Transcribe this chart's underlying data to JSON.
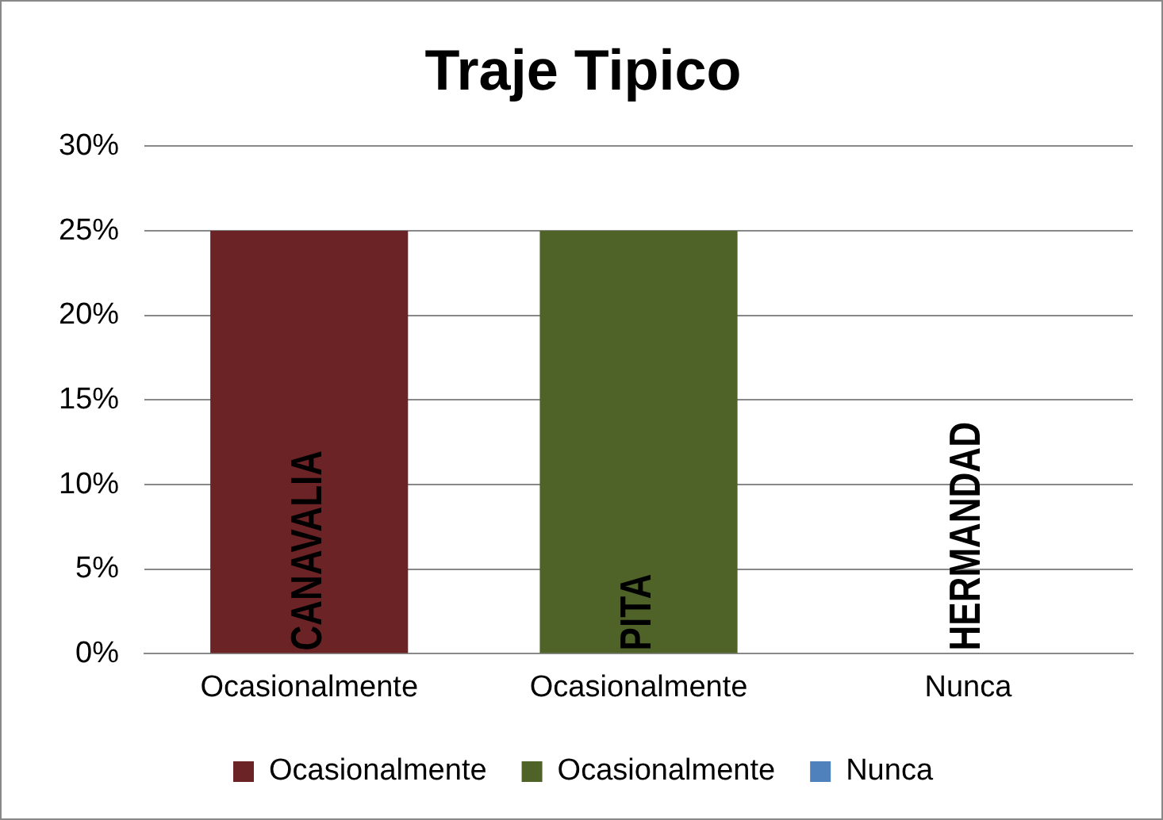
{
  "chart_data": {
    "type": "bar",
    "title": "Traje Tipico",
    "categories": [
      "Ocasionalmente",
      "Ocasionalmente",
      "Nunca"
    ],
    "series": [
      {
        "name": "Ocasionalmente",
        "color": "#6b2326",
        "values": [
          25,
          null,
          null
        ]
      },
      {
        "name": "Ocasionalmente",
        "color": "#4f6228",
        "values": [
          null,
          25,
          null
        ]
      },
      {
        "name": "Nunca",
        "color": "#4f81bd",
        "values": [
          null,
          null,
          0
        ]
      }
    ],
    "ylim": [
      0,
      30
    ],
    "yticks": [
      {
        "value": 0,
        "label": "0%"
      },
      {
        "value": 5,
        "label": "5%"
      },
      {
        "value": 10,
        "label": "10%"
      },
      {
        "value": 15,
        "label": "15%"
      },
      {
        "value": 20,
        "label": "20%"
      },
      {
        "value": 25,
        "label": "25%"
      },
      {
        "value": 30,
        "label": "30%"
      }
    ],
    "grid": "y",
    "legend": "bottom",
    "annotations": [
      "CANAVALIA",
      "PITA",
      "HERMANDAD"
    ]
  }
}
